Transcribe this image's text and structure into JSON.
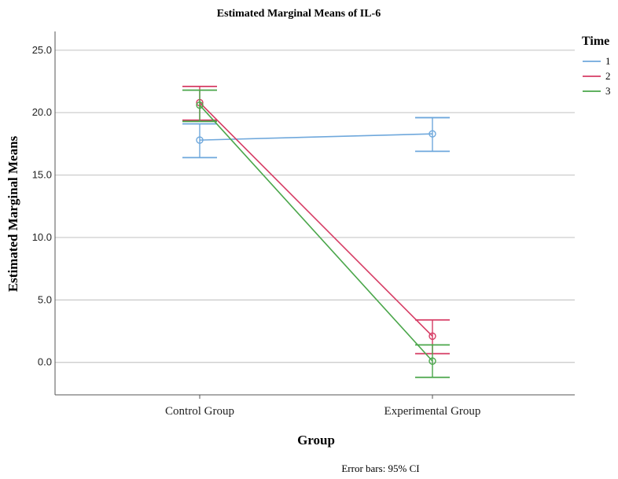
{
  "chart_data": {
    "type": "line",
    "title": "Estimated Marginal Means of IL-6",
    "xlabel": "Group",
    "ylabel": "Estimated Marginal Means",
    "categories": [
      "Control Group",
      "Experimental Group"
    ],
    "ylim": [
      -2.6,
      26.5
    ],
    "yticks": [
      "0.0",
      "5.0",
      "10.0",
      "15.0",
      "20.0",
      "25.0"
    ],
    "grid": true,
    "legend_title": "Time",
    "legend_position": "top-right",
    "footnote": "Error bars: 95% CI",
    "series": [
      {
        "name": "1",
        "color": "#6fa8dc",
        "values": [
          17.8,
          18.3
        ],
        "ci_low": [
          16.4,
          16.9
        ],
        "ci_high": [
          19.1,
          19.6
        ]
      },
      {
        "name": "2",
        "color": "#d63c64",
        "values": [
          20.8,
          2.1
        ],
        "ci_low": [
          19.4,
          0.7
        ],
        "ci_high": [
          22.1,
          3.4
        ]
      },
      {
        "name": "3",
        "color": "#4aa64a",
        "values": [
          20.6,
          0.1
        ],
        "ci_low": [
          19.3,
          -1.2
        ],
        "ci_high": [
          21.8,
          1.4
        ]
      }
    ]
  }
}
